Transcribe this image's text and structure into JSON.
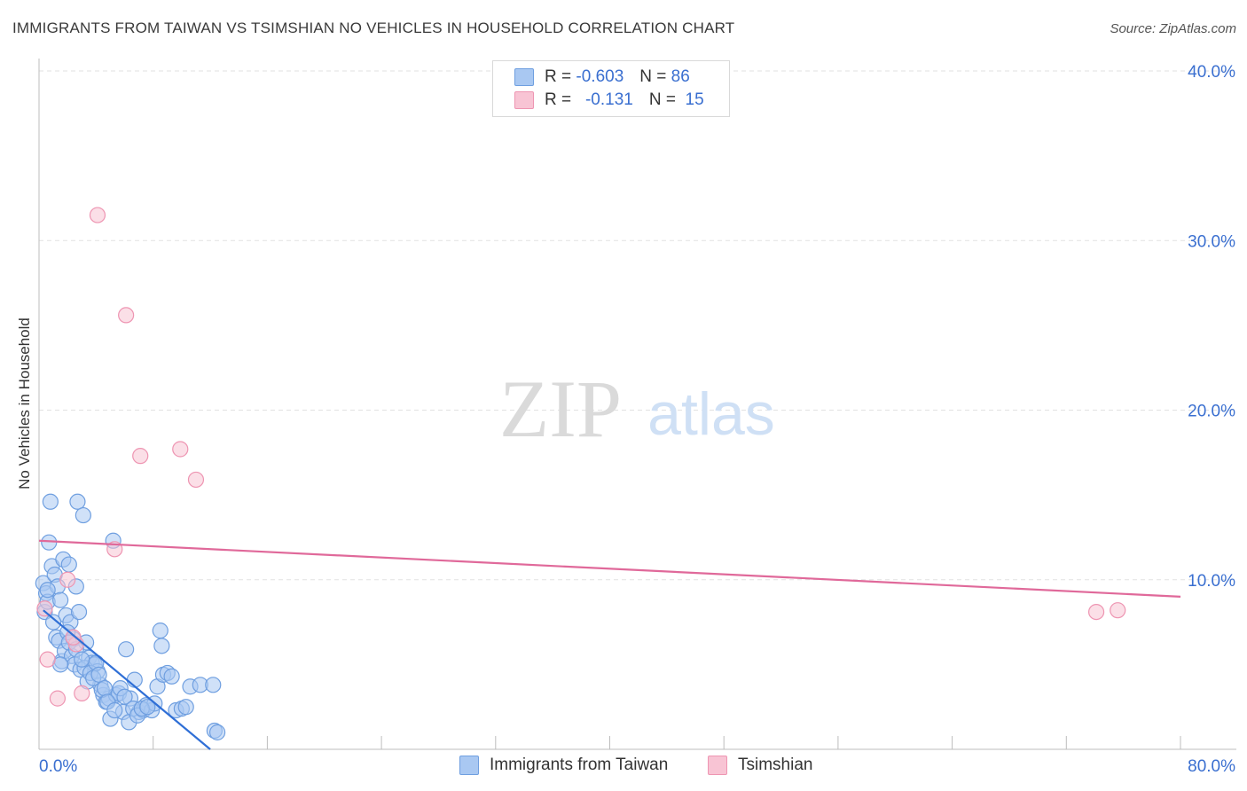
{
  "header": {
    "title": "IMMIGRANTS FROM TAIWAN VS TSIMSHIAN NO VEHICLES IN HOUSEHOLD CORRELATION CHART",
    "source": "Source: ZipAtlas.com"
  },
  "watermark": {
    "zip": "ZIP",
    "atlas": "atlas"
  },
  "legend": {
    "rows": [
      {
        "r_label": "R =",
        "r_value": "-0.603",
        "n_label": "N =",
        "n_value": "86",
        "color": "#a9c8f2"
      },
      {
        "r_label": "R =",
        "r_value": "-0.131",
        "n_label": "N =",
        "n_value": "15",
        "color": "#f6b7cb"
      }
    ]
  },
  "bottom_legend": {
    "series1": "Immigrants from Taiwan",
    "series2": "Tsimshian"
  },
  "colors": {
    "blue_fill": "#a9c8f2",
    "blue_stroke": "#6f9fe0",
    "blue_line": "#2f6fd6",
    "pink_fill": "#f8c4d4",
    "pink_stroke": "#ee95b2",
    "pink_line": "#e0699a",
    "tick_label": "#3a6fd0",
    "grid": "#e2e2e2"
  },
  "chart_data": {
    "type": "scatter",
    "title": "IMMIGRANTS FROM TAIWAN VS TSIMSHIAN NO VEHICLES IN HOUSEHOLD CORRELATION CHART",
    "xlabel": "",
    "ylabel": "No Vehicles in Household",
    "xlim": [
      0,
      80
    ],
    "ylim": [
      0,
      40
    ],
    "x_tick_labels": [
      "0.0%",
      "80.0%"
    ],
    "y_ticks": [
      10,
      20,
      30,
      40
    ],
    "y_tick_labels": [
      "10.0%",
      "20.0%",
      "30.0%",
      "40.0%"
    ],
    "grid": true,
    "legend_placement": "top-center",
    "series": [
      {
        "name": "Immigrants from Taiwan",
        "points": [
          [
            0.3,
            9.8
          ],
          [
            0.5,
            9.2
          ],
          [
            0.4,
            8.1
          ],
          [
            0.6,
            8.7
          ],
          [
            0.7,
            12.2
          ],
          [
            0.8,
            14.6
          ],
          [
            0.9,
            10.8
          ],
          [
            1.1,
            10.3
          ],
          [
            1.3,
            9.6
          ],
          [
            1.5,
            8.8
          ],
          [
            1.7,
            11.2
          ],
          [
            1.9,
            7.9
          ],
          [
            2.1,
            10.9
          ],
          [
            2.2,
            7.5
          ],
          [
            2.4,
            6.5
          ],
          [
            2.6,
            9.6
          ],
          [
            2.8,
            8.1
          ],
          [
            2.7,
            14.6
          ],
          [
            3.1,
            13.8
          ],
          [
            3.3,
            6.3
          ],
          [
            3.5,
            5.4
          ],
          [
            3.7,
            5.1
          ],
          [
            3.9,
            5.0
          ],
          [
            4.1,
            4.6
          ],
          [
            4.3,
            3.8
          ],
          [
            4.5,
            3.2
          ],
          [
            4.7,
            2.8
          ],
          [
            4.9,
            3.0
          ],
          [
            5.2,
            12.3
          ],
          [
            5.4,
            3.2
          ],
          [
            5.6,
            3.3
          ],
          [
            5.9,
            2.2
          ],
          [
            6.1,
            5.9
          ],
          [
            6.4,
            3.0
          ],
          [
            6.7,
            4.1
          ],
          [
            7.0,
            2.2
          ],
          [
            7.3,
            2.3
          ],
          [
            7.5,
            2.6
          ],
          [
            7.9,
            2.3
          ],
          [
            8.1,
            2.7
          ],
          [
            8.3,
            3.7
          ],
          [
            8.5,
            7.0
          ],
          [
            8.6,
            6.1
          ],
          [
            8.7,
            4.4
          ],
          [
            9.0,
            4.5
          ],
          [
            9.3,
            4.3
          ],
          [
            9.6,
            2.3
          ],
          [
            10.0,
            2.4
          ],
          [
            10.3,
            2.5
          ],
          [
            10.6,
            3.7
          ],
          [
            11.3,
            3.8
          ],
          [
            12.2,
            3.8
          ],
          [
            12.3,
            1.1
          ],
          [
            12.5,
            1.0
          ],
          [
            0.6,
            9.4
          ],
          [
            1.0,
            7.5
          ],
          [
            1.2,
            6.6
          ],
          [
            1.4,
            6.4
          ],
          [
            1.6,
            5.2
          ],
          [
            1.8,
            5.8
          ],
          [
            2.0,
            6.9
          ],
          [
            2.3,
            5.5
          ],
          [
            2.5,
            5.0
          ],
          [
            2.9,
            4.7
          ],
          [
            3.2,
            4.8
          ],
          [
            3.4,
            4.0
          ],
          [
            3.6,
            4.5
          ],
          [
            3.8,
            4.2
          ],
          [
            4.0,
            5.1
          ],
          [
            4.2,
            4.4
          ],
          [
            4.4,
            3.5
          ],
          [
            4.6,
            3.6
          ],
          [
            4.8,
            2.8
          ],
          [
            5.0,
            1.8
          ],
          [
            5.3,
            2.3
          ],
          [
            5.7,
            3.6
          ],
          [
            6.0,
            3.1
          ],
          [
            6.3,
            1.6
          ],
          [
            6.6,
            2.4
          ],
          [
            6.9,
            2.0
          ],
          [
            7.2,
            2.4
          ],
          [
            7.6,
            2.5
          ],
          [
            1.5,
            5.0
          ],
          [
            2.1,
            6.3
          ],
          [
            2.6,
            5.9
          ],
          [
            3.0,
            5.3
          ]
        ],
        "trend": {
          "x": [
            0.3,
            12.0
          ],
          "y": [
            8.2,
            0.0
          ]
        }
      },
      {
        "name": "Tsimshian",
        "points": [
          [
            4.1,
            31.5
          ],
          [
            6.1,
            25.6
          ],
          [
            9.9,
            17.7
          ],
          [
            7.1,
            17.3
          ],
          [
            11.0,
            15.9
          ],
          [
            5.3,
            11.8
          ],
          [
            2.0,
            10.0
          ],
          [
            2.6,
            6.2
          ],
          [
            0.4,
            8.3
          ],
          [
            0.6,
            5.3
          ],
          [
            1.3,
            3.0
          ],
          [
            2.4,
            6.6
          ],
          [
            3.0,
            3.3
          ],
          [
            74.1,
            8.1
          ],
          [
            75.6,
            8.2
          ]
        ],
        "trend": {
          "x": [
            0,
            80
          ],
          "y": [
            12.3,
            9.0
          ]
        }
      }
    ]
  }
}
